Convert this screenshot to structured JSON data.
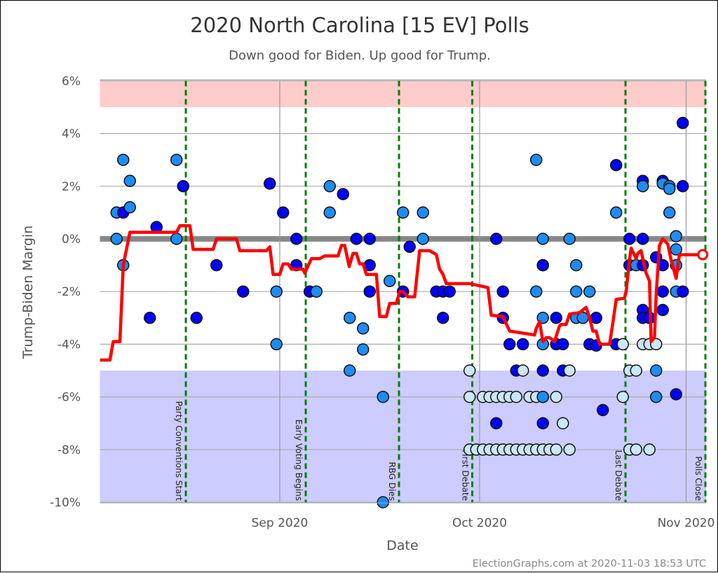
{
  "chart_data": {
    "type": "scatter",
    "title": "2020 North Carolina [15 EV] Polls",
    "subtitle": "Down good for Biden. Up good for Trump.",
    "xlabel": "Date",
    "ylabel": "Trump-Biden Margin",
    "footer": "ElectionGraphs.com at 2020-11-03 18:53 UTC",
    "xlim": [
      "2020-08-05",
      "2020-11-04"
    ],
    "ylim": [
      -10,
      6
    ],
    "y_ticks": [
      6,
      4,
      2,
      0,
      -2,
      -4,
      -6,
      -8,
      -10
    ],
    "y_tick_labels": [
      "6%",
      "4%",
      "2%",
      "0%",
      "-2%",
      "-4%",
      "-6%",
      "-8%",
      "-10%"
    ],
    "x_ticks": [
      {
        "date": "2020-09-01",
        "label": "Sep 2020"
      },
      {
        "date": "2020-10-01",
        "label": "Oct 2020"
      },
      {
        "date": "2020-11-01",
        "label": "Nov 2020"
      }
    ],
    "grid": true,
    "shaded_bands": [
      {
        "from": 5,
        "to": 6,
        "color": "#ffcccc"
      },
      {
        "from": -10,
        "to": -5,
        "color": "#ccccff"
      }
    ],
    "events": [
      {
        "date": "2020-08-17",
        "label": "Party Conventions Start"
      },
      {
        "date": "2020-09-04",
        "label": "Early Voting Begins"
      },
      {
        "date": "2020-09-18",
        "label": "RBG Dies"
      },
      {
        "date": "2020-09-29",
        "label": "First Debate"
      },
      {
        "date": "2020-10-22",
        "label": "Last Debate"
      },
      {
        "date": "2020-11-03",
        "label": "Polls Close"
      }
    ],
    "colors": {
      "d": "#0000ff",
      "m": "#1e8cf5",
      "l": "#cce6fa",
      "trend": "#ff0000",
      "event": "#008000",
      "zero_line": "#777777"
    },
    "polls": [
      [
        "2020-08-07",
        1.0,
        "m"
      ],
      [
        "2020-08-07",
        0.0,
        "m"
      ],
      [
        "2020-08-08",
        3.0,
        "m"
      ],
      [
        "2020-08-08",
        1.0,
        "d"
      ],
      [
        "2020-08-08",
        -1.0,
        "m"
      ],
      [
        "2020-08-09",
        2.2,
        "m"
      ],
      [
        "2020-08-09",
        1.2,
        "m"
      ],
      [
        "2020-08-12",
        -3.0,
        "d"
      ],
      [
        "2020-08-13",
        0.45,
        "d"
      ],
      [
        "2020-08-16",
        3.0,
        "m"
      ],
      [
        "2020-08-16",
        0.0,
        "m"
      ],
      [
        "2020-08-17",
        2.0,
        "d"
      ],
      [
        "2020-08-19",
        -3.0,
        "d"
      ],
      [
        "2020-08-22",
        -1.0,
        "d"
      ],
      [
        "2020-08-26",
        -2.0,
        "d"
      ],
      [
        "2020-08-30",
        2.1,
        "d"
      ],
      [
        "2020-08-31",
        -2.0,
        "m"
      ],
      [
        "2020-08-31",
        -4.0,
        "m"
      ],
      [
        "2020-09-01",
        1.0,
        "d"
      ],
      [
        "2020-09-03",
        0.0,
        "d"
      ],
      [
        "2020-09-03",
        -1.0,
        "d"
      ],
      [
        "2020-09-05",
        -2.0,
        "d"
      ],
      [
        "2020-09-06",
        -2.0,
        "m"
      ],
      [
        "2020-09-08",
        2.0,
        "m"
      ],
      [
        "2020-09-08",
        1.0,
        "m"
      ],
      [
        "2020-09-10",
        1.7,
        "d"
      ],
      [
        "2020-09-11",
        -3.0,
        "m"
      ],
      [
        "2020-09-11",
        -5.0,
        "m"
      ],
      [
        "2020-09-12",
        0.0,
        "d"
      ],
      [
        "2020-09-13",
        -3.4,
        "m"
      ],
      [
        "2020-09-13",
        -4.2,
        "m"
      ],
      [
        "2020-09-14",
        0.0,
        "d"
      ],
      [
        "2020-09-14",
        -1.0,
        "d"
      ],
      [
        "2020-09-14",
        -2.0,
        "d"
      ],
      [
        "2020-09-16",
        -6.0,
        "m"
      ],
      [
        "2020-09-16",
        -10.0,
        "m"
      ],
      [
        "2020-09-17",
        -1.6,
        "m"
      ],
      [
        "2020-09-19",
        1.0,
        "m"
      ],
      [
        "2020-09-19",
        -2.0,
        "d"
      ],
      [
        "2020-09-20",
        -0.3,
        "d"
      ],
      [
        "2020-09-22",
        1.0,
        "m"
      ],
      [
        "2020-09-22",
        0.0,
        "m"
      ],
      [
        "2020-09-24",
        -2.0,
        "d"
      ],
      [
        "2020-09-25",
        -2.0,
        "d"
      ],
      [
        "2020-09-26",
        -2.0,
        "d"
      ],
      [
        "2020-09-25",
        -3.0,
        "d"
      ],
      [
        "2020-09-29",
        -5.0,
        "l"
      ],
      [
        "2020-09-29",
        -6.0,
        "l"
      ],
      [
        "2020-09-29",
        -8.0,
        "l"
      ],
      [
        "2020-09-30",
        -8.0,
        "l"
      ],
      [
        "2020-10-01",
        -6.0,
        "l"
      ],
      [
        "2020-10-01",
        -8.0,
        "l"
      ],
      [
        "2020-10-02",
        -6.0,
        "l"
      ],
      [
        "2020-10-02",
        -8.0,
        "l"
      ],
      [
        "2020-10-03",
        -6.0,
        "l"
      ],
      [
        "2020-10-03",
        -8.0,
        "l"
      ],
      [
        "2020-10-04",
        -6.0,
        "l"
      ],
      [
        "2020-10-04",
        -8.0,
        "l"
      ],
      [
        "2020-10-05",
        -6.0,
        "l"
      ],
      [
        "2020-10-05",
        -8.0,
        "l"
      ],
      [
        "2020-10-06",
        -6.0,
        "l"
      ],
      [
        "2020-10-06",
        -8.0,
        "l"
      ],
      [
        "2020-10-07",
        -8.0,
        "l"
      ],
      [
        "2020-10-08",
        -6.0,
        "l"
      ],
      [
        "2020-10-08",
        -8.0,
        "l"
      ],
      [
        "2020-10-09",
        -6.0,
        "l"
      ],
      [
        "2020-10-09",
        -8.0,
        "l"
      ],
      [
        "2020-10-10",
        -6.0,
        "l"
      ],
      [
        "2020-10-10",
        -8.0,
        "l"
      ],
      [
        "2020-10-11",
        -8.0,
        "l"
      ],
      [
        "2020-10-12",
        -6.0,
        "l"
      ],
      [
        "2020-10-12",
        -8.0,
        "l"
      ],
      [
        "2020-10-14",
        -8.0,
        "l"
      ],
      [
        "2020-10-03",
        0.0,
        "d"
      ],
      [
        "2020-10-04",
        -2.0,
        "d"
      ],
      [
        "2020-10-04",
        -3.0,
        "d"
      ],
      [
        "2020-10-03",
        -7.0,
        "d"
      ],
      [
        "2020-10-05",
        -4.0,
        "d"
      ],
      [
        "2020-10-06",
        -5.0,
        "d"
      ],
      [
        "2020-10-07",
        -5.0,
        "l"
      ],
      [
        "2020-10-07",
        -4.0,
        "d"
      ],
      [
        "2020-10-09",
        3.0,
        "m"
      ],
      [
        "2020-10-09",
        -2.0,
        "m"
      ],
      [
        "2020-10-10",
        -1.0,
        "m"
      ],
      [
        "2020-10-10",
        -3.0,
        "m"
      ],
      [
        "2020-10-10",
        -4.0,
        "m"
      ],
      [
        "2020-10-10",
        -6.0,
        "m"
      ],
      [
        "2020-10-10",
        -5.0,
        "d"
      ],
      [
        "2020-10-10",
        -7.0,
        "d"
      ],
      [
        "2020-10-10",
        -1.0,
        "d"
      ],
      [
        "2020-10-10",
        0.0,
        "m"
      ],
      [
        "2020-10-12",
        -4.0,
        "d"
      ],
      [
        "2020-10-12",
        -3.0,
        "d"
      ],
      [
        "2020-10-13",
        -4.0,
        "d"
      ],
      [
        "2020-10-13",
        -5.0,
        "d"
      ],
      [
        "2020-10-14",
        -5.0,
        "l"
      ],
      [
        "2020-10-13",
        -7.0,
        "l"
      ],
      [
        "2020-10-14",
        0.0,
        "m"
      ],
      [
        "2020-10-15",
        -1.0,
        "m"
      ],
      [
        "2020-10-15",
        -2.0,
        "m"
      ],
      [
        "2020-10-15",
        -3.0,
        "m"
      ],
      [
        "2020-10-16",
        -3.0,
        "m"
      ],
      [
        "2020-10-17",
        -4.0,
        "d"
      ],
      [
        "2020-10-17",
        -2.0,
        "m"
      ],
      [
        "2020-10-18",
        -3.0,
        "d"
      ],
      [
        "2020-10-18",
        -4.05,
        "d"
      ],
      [
        "2020-10-19",
        -6.5,
        "d"
      ],
      [
        "2020-10-21",
        1.0,
        "m"
      ],
      [
        "2020-10-21",
        2.8,
        "d"
      ],
      [
        "2020-10-21",
        -4.0,
        "d"
      ],
      [
        "2020-10-22",
        -4.0,
        "l"
      ],
      [
        "2020-10-22",
        -6.0,
        "l"
      ],
      [
        "2020-10-23",
        -5.0,
        "l"
      ],
      [
        "2020-10-23",
        -8.0,
        "l"
      ],
      [
        "2020-10-24",
        -5.0,
        "l"
      ],
      [
        "2020-10-24",
        -8.0,
        "l"
      ],
      [
        "2020-10-26",
        -8.0,
        "l"
      ],
      [
        "2020-10-23",
        0.0,
        "d"
      ],
      [
        "2020-10-25",
        0.0,
        "d"
      ],
      [
        "2020-10-23",
        -1.0,
        "d"
      ],
      [
        "2020-10-24",
        -1.0,
        "m"
      ],
      [
        "2020-10-25",
        -1.0,
        "d"
      ],
      [
        "2020-10-25",
        2.2,
        "d"
      ],
      [
        "2020-10-25",
        -2.7,
        "d"
      ],
      [
        "2020-10-25",
        2.0,
        "m"
      ],
      [
        "2020-10-25",
        -3.0,
        "d"
      ],
      [
        "2020-10-26",
        -3.0,
        "d"
      ],
      [
        "2020-10-26",
        -3.0,
        "d"
      ],
      [
        "2020-10-25",
        -4.0,
        "l"
      ],
      [
        "2020-10-26",
        -4.0,
        "l"
      ],
      [
        "2020-10-27",
        -4.0,
        "l"
      ],
      [
        "2020-10-27",
        -5.0,
        "m"
      ],
      [
        "2020-10-27",
        -6.0,
        "m"
      ],
      [
        "2020-10-27",
        -0.7,
        "d"
      ],
      [
        "2020-10-28",
        -2.0,
        "d"
      ],
      [
        "2020-10-28",
        -1.0,
        "d"
      ],
      [
        "2020-10-28",
        -2.7,
        "d"
      ],
      [
        "2020-10-28",
        2.2,
        "d"
      ],
      [
        "2020-10-28",
        2.1,
        "m"
      ],
      [
        "2020-10-29",
        2.0,
        "m"
      ],
      [
        "2020-10-29",
        1.9,
        "m"
      ],
      [
        "2020-10-29",
        1.0,
        "m"
      ],
      [
        "2020-10-30",
        -1.0,
        "m"
      ],
      [
        "2020-10-30",
        -2.0,
        "m"
      ],
      [
        "2020-10-30",
        0.1,
        "m"
      ],
      [
        "2020-10-30",
        -0.4,
        "m"
      ],
      [
        "2020-10-30",
        -5.9,
        "d"
      ],
      [
        "2020-10-31",
        4.4,
        "d"
      ],
      [
        "2020-10-31",
        2.0,
        "d"
      ],
      [
        "2020-10-31",
        -2.0,
        "d"
      ]
    ],
    "trend": [
      [
        "2020-08-05T00",
        -4.6
      ],
      [
        "2020-08-06T12",
        -4.6
      ],
      [
        "2020-08-07T00",
        -3.9
      ],
      [
        "2020-08-08T00",
        -3.9
      ],
      [
        "2020-08-08T12",
        -1.0
      ],
      [
        "2020-08-09T12",
        0.25
      ],
      [
        "2020-08-16T12",
        0.25
      ],
      [
        "2020-08-17T00",
        0.5
      ],
      [
        "2020-08-18T12",
        0.5
      ],
      [
        "2020-08-19T00",
        -0.4
      ],
      [
        "2020-08-22T00",
        -0.4
      ],
      [
        "2020-08-22T12",
        0.0
      ],
      [
        "2020-08-25T12",
        0.0
      ],
      [
        "2020-08-26T00",
        -0.45
      ],
      [
        "2020-08-30T00",
        -0.45
      ],
      [
        "2020-08-30T12",
        -0.3
      ],
      [
        "2020-08-31T00",
        -1.35
      ],
      [
        "2020-09-01T00",
        -1.35
      ],
      [
        "2020-09-01T12",
        -0.95
      ],
      [
        "2020-09-02T06",
        -0.95
      ],
      [
        "2020-09-02T18",
        -1.15
      ],
      [
        "2020-09-04T12",
        -1.15
      ],
      [
        "2020-09-04T18",
        -1.3
      ],
      [
        "2020-09-05T18",
        -0.75
      ],
      [
        "2020-09-07T00",
        -0.75
      ],
      [
        "2020-09-07T18",
        -0.65
      ],
      [
        "2020-09-09T18",
        -0.65
      ],
      [
        "2020-09-10T06",
        -0.25
      ],
      [
        "2020-09-10T18",
        -0.25
      ],
      [
        "2020-09-11T10",
        -1.05
      ],
      [
        "2020-09-12T00",
        -0.55
      ],
      [
        "2020-09-12T12",
        -0.55
      ],
      [
        "2020-09-13T00",
        -0.95
      ],
      [
        "2020-09-13T12",
        -0.95
      ],
      [
        "2020-09-14T00",
        -1.35
      ],
      [
        "2020-09-15T12",
        -1.35
      ],
      [
        "2020-09-16T00",
        -2.95
      ],
      [
        "2020-09-17T00",
        -2.95
      ],
      [
        "2020-09-17T12",
        -2.45
      ],
      [
        "2020-09-18T12",
        -2.45
      ],
      [
        "2020-09-19T00",
        -2.0
      ],
      [
        "2020-09-19T12",
        -2.0
      ],
      [
        "2020-09-20T06",
        -2.2
      ],
      [
        "2020-09-21T06",
        -2.2
      ],
      [
        "2020-09-22T00",
        -0.45
      ],
      [
        "2020-09-23T12",
        -0.45
      ],
      [
        "2020-09-24T12",
        -0.6
      ],
      [
        "2020-09-25T00",
        -1.15
      ],
      [
        "2020-09-25T12",
        -1.35
      ],
      [
        "2020-09-26T00",
        -1.7
      ],
      [
        "2020-09-29T12",
        -1.7
      ],
      [
        "2020-10-01T00",
        -1.78
      ],
      [
        "2020-10-02T06",
        -1.85
      ],
      [
        "2020-10-02T18",
        -2.9
      ],
      [
        "2020-10-04T12",
        -2.95
      ],
      [
        "2020-10-05T12",
        -3.5
      ],
      [
        "2020-10-06T18",
        -3.55
      ],
      [
        "2020-10-09T06",
        -3.65
      ],
      [
        "2020-10-09T12",
        -3.4
      ],
      [
        "2020-10-10T00",
        -3.15
      ],
      [
        "2020-10-10T12",
        -3.9
      ],
      [
        "2020-10-11T00",
        -3.75
      ],
      [
        "2020-10-11T12",
        -3.75
      ],
      [
        "2020-10-12T06",
        -3.9
      ],
      [
        "2020-10-13T00",
        -3.3
      ],
      [
        "2020-10-13T06",
        -3.25
      ],
      [
        "2020-10-14T00",
        -3.25
      ],
      [
        "2020-10-14T12",
        -2.85
      ],
      [
        "2020-10-16T00",
        -2.8
      ],
      [
        "2020-10-17T00",
        -2.6
      ],
      [
        "2020-10-17T12",
        -3.0
      ],
      [
        "2020-10-18T00",
        -3.5
      ],
      [
        "2020-10-18T12",
        -3.5
      ],
      [
        "2020-10-19T00",
        -4.0
      ],
      [
        "2020-10-20T12",
        -4.0
      ],
      [
        "2020-10-21T00",
        -3.2
      ],
      [
        "2020-10-21T12",
        -2.3
      ],
      [
        "2020-10-22T18",
        -2.25
      ],
      [
        "2020-10-23T00",
        -2.0
      ],
      [
        "2020-10-23T12",
        -0.8
      ],
      [
        "2020-10-23T18",
        -0.35
      ],
      [
        "2020-10-24T12",
        -0.75
      ],
      [
        "2020-10-24T18",
        -0.55
      ],
      [
        "2020-10-25T06",
        -0.45
      ],
      [
        "2020-10-25T18",
        -1.05
      ],
      [
        "2020-10-26T00",
        -1.3
      ],
      [
        "2020-10-26T12",
        -1.6
      ],
      [
        "2020-10-26T18",
        -3.9
      ],
      [
        "2020-10-27T06",
        -3.75
      ],
      [
        "2020-10-27T12",
        -2.1
      ],
      [
        "2020-10-28T00",
        -0.25
      ],
      [
        "2020-10-28T12",
        0.0
      ],
      [
        "2020-10-29T06",
        -0.2
      ],
      [
        "2020-10-29T18",
        -0.8
      ],
      [
        "2020-10-30T12",
        -1.5
      ],
      [
        "2020-10-31T00",
        -0.6
      ],
      [
        "2020-11-03T12",
        -0.6
      ]
    ]
  }
}
